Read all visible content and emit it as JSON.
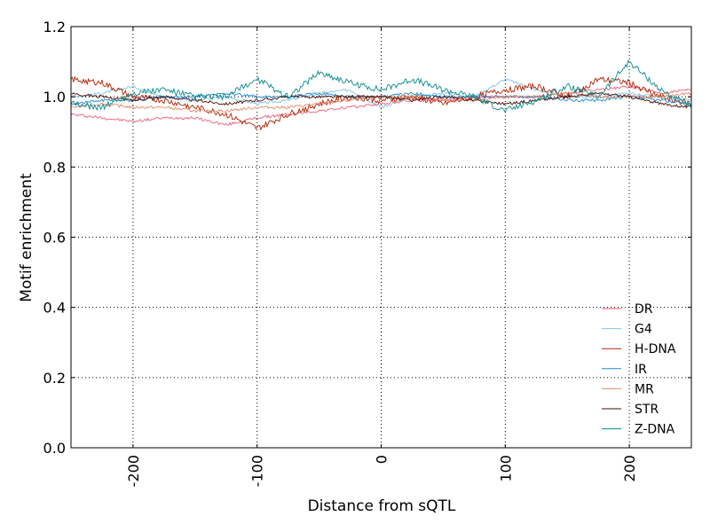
{
  "chart_data": {
    "type": "line",
    "xlabel": "Distance from sQTL",
    "ylabel": "Motif enrichment",
    "xlim": [
      -250,
      250
    ],
    "ylim": [
      0.0,
      1.2
    ],
    "xticks": [
      -200,
      -100,
      0,
      100,
      200
    ],
    "xtick_labels": [
      "-200",
      "-100",
      "0",
      "100",
      "200"
    ],
    "yticks": [
      0.0,
      0.2,
      0.4,
      0.6,
      0.8,
      1.0,
      1.2
    ],
    "ytick_labels": [
      "0.0",
      "0.2",
      "0.4",
      "0.6",
      "0.8",
      "1.0",
      "1.2"
    ],
    "grid": true,
    "legend_position": "lower-right",
    "series": [
      {
        "name": "DR",
        "color": "#f0607a",
        "x": [
          -250,
          -225,
          -200,
          -175,
          -150,
          -125,
          -100,
          -75,
          -50,
          -25,
          0,
          25,
          50,
          75,
          100,
          125,
          150,
          175,
          200,
          225,
          250
        ],
        "y": [
          0.95,
          0.94,
          0.93,
          0.94,
          0.94,
          0.92,
          0.94,
          0.95,
          0.96,
          0.97,
          0.98,
          0.99,
          0.99,
          1.0,
          1.0,
          1.0,
          1.01,
          1.02,
          1.03,
          1.01,
          1.02
        ]
      },
      {
        "name": "G4",
        "color": "#7fc4e6",
        "x": [
          -250,
          -225,
          -200,
          -175,
          -150,
          -125,
          -100,
          -75,
          -50,
          -25,
          0,
          25,
          50,
          75,
          100,
          125,
          150,
          175,
          200,
          225,
          250
        ],
        "y": [
          1.0,
          1.01,
          1.03,
          1.0,
          0.99,
          1.0,
          0.98,
          0.99,
          1.01,
          1.02,
          0.97,
          1.0,
          1.01,
          1.0,
          1.05,
          1.02,
          1.0,
          1.0,
          1.01,
          1.0,
          0.99
        ]
      },
      {
        "name": "H-DNA",
        "color": "#b22200",
        "x": [
          -250,
          -225,
          -200,
          -175,
          -150,
          -125,
          -100,
          -75,
          -50,
          -25,
          0,
          25,
          50,
          75,
          100,
          125,
          150,
          175,
          200,
          225,
          250
        ],
        "y": [
          1.05,
          1.04,
          1.0,
          0.99,
          0.97,
          0.95,
          0.91,
          0.95,
          0.98,
          1.0,
          0.99,
          1.0,
          0.98,
          1.0,
          1.02,
          1.03,
          1.0,
          1.05,
          1.04,
          1.0,
          0.98
        ]
      },
      {
        "name": "IR",
        "color": "#1e88d4",
        "x": [
          -250,
          -225,
          -200,
          -175,
          -150,
          -125,
          -100,
          -75,
          -50,
          -25,
          0,
          25,
          50,
          75,
          100,
          125,
          150,
          175,
          200,
          225,
          250
        ],
        "y": [
          0.98,
          0.99,
          0.99,
          1.0,
          1.0,
          1.01,
          1.0,
          1.0,
          1.01,
          1.0,
          1.0,
          1.01,
          1.0,
          1.0,
          1.0,
          1.0,
          0.99,
          0.99,
          1.0,
          0.99,
          0.98
        ]
      },
      {
        "name": "MR",
        "color": "#e28a6a",
        "x": [
          -250,
          -225,
          -200,
          -175,
          -150,
          -125,
          -100,
          -75,
          -50,
          -25,
          0,
          25,
          50,
          75,
          100,
          125,
          150,
          175,
          200,
          225,
          250
        ],
        "y": [
          0.97,
          0.98,
          0.97,
          0.97,
          0.96,
          0.96,
          0.97,
          0.97,
          0.98,
          0.99,
          1.0,
          1.0,
          0.99,
          0.99,
          1.0,
          1.0,
          1.01,
          1.0,
          1.0,
          1.0,
          1.01
        ]
      },
      {
        "name": "STR",
        "color": "#4a0c00",
        "x": [
          -250,
          -225,
          -200,
          -175,
          -150,
          -125,
          -100,
          -75,
          -50,
          -25,
          0,
          25,
          50,
          75,
          100,
          125,
          150,
          175,
          200,
          225,
          250
        ],
        "y": [
          1.01,
          1.0,
          0.99,
          1.0,
          0.99,
          0.98,
          0.99,
          1.0,
          1.0,
          1.0,
          1.0,
          0.99,
          1.0,
          0.99,
          0.98,
          0.99,
          1.0,
          1.01,
          1.0,
          0.98,
          0.97
        ]
      },
      {
        "name": "Z-DNA",
        "color": "#0a8a8a",
        "x": [
          -250,
          -225,
          -200,
          -175,
          -150,
          -125,
          -100,
          -75,
          -50,
          -25,
          0,
          25,
          50,
          75,
          100,
          125,
          150,
          175,
          200,
          225,
          250
        ],
        "y": [
          0.98,
          0.97,
          1.01,
          1.02,
          1.0,
          1.0,
          1.05,
          1.0,
          1.07,
          1.04,
          1.02,
          1.05,
          1.02,
          1.0,
          0.96,
          0.99,
          1.03,
          1.0,
          1.1,
          1.02,
          0.97
        ]
      }
    ]
  }
}
